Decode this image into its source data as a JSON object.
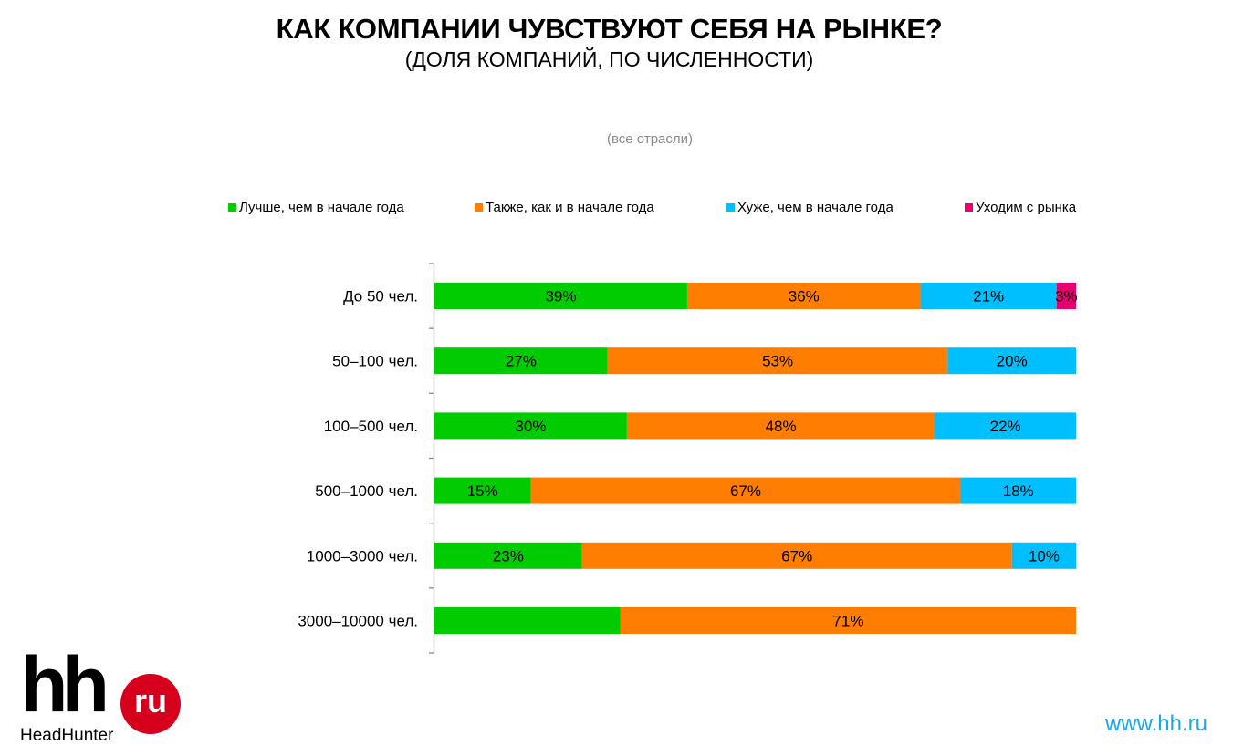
{
  "title": "КАК КОМПАНИИ ЧУВСТВУЮТ СЕБЯ НА РЫНКЕ?",
  "subtitle": "(ДОЛЯ КОМПАНИЙ, ПО ЧИСЛЕННОСТИ)",
  "filter_label": "(все отрасли)",
  "logo": {
    "hh": "hh",
    "ru": "ru",
    "brand": "HeadHunter"
  },
  "site": "www.hh.ru",
  "chart_data": {
    "type": "bar",
    "orientation": "horizontal",
    "stacked": true,
    "title": "КАК КОМПАНИИ ЧУВСТВУЮТ СЕБЯ НА РЫНКЕ?",
    "subtitle": "(ДОЛЯ КОМПАНИЙ, ПО ЧИСЛЕННОСТИ)",
    "xlim": [
      0,
      100
    ],
    "legend_position": "top",
    "categories": [
      "До 50 чел.",
      "50–100 чел.",
      "100–500 чел.",
      "500–1000 чел.",
      "1000–3000 чел.",
      "3000–10000 чел."
    ],
    "series": [
      {
        "name": "Лучше, чем в начале года",
        "color": "#00cc00",
        "values": [
          39,
          27,
          30,
          15,
          23,
          29
        ],
        "labels": [
          "39%",
          "27%",
          "30%",
          "15%",
          "23%",
          ""
        ]
      },
      {
        "name": "Также, как и в начале года",
        "color": "#ff7d00",
        "values": [
          36,
          53,
          48,
          67,
          67,
          71
        ],
        "labels": [
          "36%",
          "53%",
          "48%",
          "67%",
          "67%",
          "71%"
        ]
      },
      {
        "name": "Хуже, чем в начале года",
        "color": "#00bfff",
        "values": [
          21,
          20,
          22,
          18,
          10,
          0
        ],
        "labels": [
          "21%",
          "20%",
          "22%",
          "18%",
          "10%",
          ""
        ]
      },
      {
        "name": "Уходим с рынка",
        "color": "#e8006e",
        "values": [
          3,
          0,
          0,
          0,
          0,
          0
        ],
        "labels": [
          "3%",
          "",
          "",
          "",
          "",
          ""
        ]
      }
    ]
  }
}
